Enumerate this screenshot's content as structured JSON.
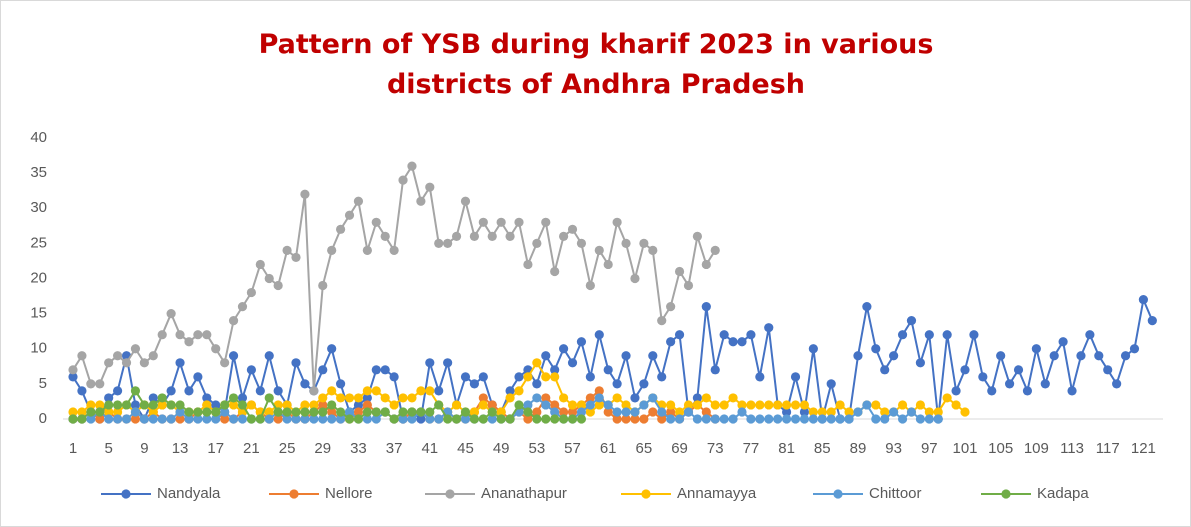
{
  "chart_data": {
    "type": "line",
    "title": "Pattern of YSB during kharif 2023 in various districts of Andhra Pradesh",
    "categories": [
      1,
      null,
      null,
      null,
      5,
      null,
      null,
      null,
      9,
      null,
      null,
      null,
      13,
      null,
      null,
      null,
      17,
      null,
      null,
      null,
      21,
      null,
      null,
      null,
      25,
      null,
      null,
      null,
      29,
      null,
      null,
      null,
      33,
      null,
      null,
      null,
      37,
      null,
      null,
      null,
      41,
      null,
      null,
      null,
      45,
      null,
      null,
      null,
      49,
      null,
      null,
      null,
      53,
      null,
      null,
      null,
      57,
      null,
      null,
      null,
      61,
      null,
      null,
      null,
      65,
      null,
      null,
      null,
      69,
      null,
      null,
      null,
      73,
      null,
      null,
      null,
      77,
      null,
      null,
      null,
      81,
      null,
      null,
      null,
      85,
      null,
      null,
      null,
      89,
      null,
      null,
      null,
      93,
      null,
      null,
      null,
      97,
      null,
      null,
      null,
      101,
      null,
      null,
      null,
      105,
      null,
      null,
      null,
      109,
      null,
      null,
      null,
      113,
      null,
      null,
      null,
      117,
      null,
      null,
      null,
      121,
      null
    ],
    "ylim": [
      0,
      40
    ],
    "yticks": [
      0,
      5,
      10,
      15,
      20,
      25,
      30,
      35,
      40
    ],
    "grid": false,
    "legend": "bottom",
    "series": [
      {
        "name": "Nandyala",
        "color": "#4472c4",
        "values": [
          6,
          4,
          1,
          0,
          3,
          4,
          9,
          2,
          0,
          3,
          2,
          4,
          8,
          4,
          6,
          3,
          2,
          1,
          9,
          3,
          7,
          4,
          9,
          4,
          2,
          8,
          5,
          4,
          7,
          10,
          5,
          1,
          2,
          3,
          7,
          7,
          6,
          0,
          1,
          0,
          8,
          4,
          8,
          2,
          6,
          5,
          6,
          2,
          1,
          4,
          6,
          7,
          5,
          9,
          7,
          10,
          8,
          11,
          6,
          12,
          7,
          5,
          9,
          3,
          5,
          9,
          6,
          11,
          12,
          1,
          3,
          16,
          7,
          12,
          11,
          11,
          12,
          6,
          13,
          2,
          1,
          6,
          1,
          10,
          0,
          5,
          0,
          0,
          9,
          16,
          10,
          7,
          9,
          12,
          14,
          8,
          12,
          0,
          12,
          4,
          7,
          12,
          6,
          4,
          9,
          5,
          7,
          4,
          10,
          5,
          9,
          11,
          4,
          9,
          12,
          9,
          7,
          5,
          9,
          10,
          17,
          14
        ]
      },
      {
        "name": "Nellore",
        "color": "#ed7d31",
        "values": [
          0,
          0,
          1,
          0,
          1,
          0,
          0,
          0,
          0,
          1,
          0,
          0,
          0,
          0,
          1,
          2,
          1,
          0,
          0,
          1,
          2,
          1,
          0,
          0,
          1,
          0,
          0,
          1,
          2,
          1,
          0,
          0,
          1,
          2,
          1,
          1,
          0,
          0,
          1,
          1,
          0,
          0,
          1,
          0,
          0,
          1,
          3,
          2,
          1,
          0,
          1,
          0,
          1,
          3,
          2,
          1,
          1,
          2,
          3,
          4,
          1,
          0,
          0,
          0,
          0,
          1,
          0,
          1,
          0,
          1,
          2,
          1,
          0,
          null,
          null,
          null,
          null,
          null,
          null,
          null,
          null,
          null,
          null,
          null,
          null,
          null,
          null,
          null,
          null,
          null,
          null,
          null,
          null,
          null,
          null,
          null,
          null,
          null,
          null,
          null,
          null,
          null,
          null,
          null,
          null,
          null,
          null,
          null,
          null,
          null,
          null,
          null,
          null,
          null,
          null,
          null,
          null,
          null,
          null,
          null,
          null,
          null
        ]
      },
      {
        "name": "Ananathapur",
        "color": "#a5a5a5",
        "values": [
          7,
          9,
          5,
          5,
          8,
          9,
          8,
          10,
          8,
          9,
          12,
          15,
          12,
          11,
          12,
          12,
          10,
          8,
          14,
          16,
          18,
          22,
          20,
          19,
          24,
          23,
          32,
          4,
          19,
          24,
          27,
          29,
          31,
          24,
          28,
          26,
          24,
          34,
          36,
          31,
          33,
          25,
          25,
          26,
          31,
          26,
          28,
          26,
          28,
          26,
          28,
          22,
          25,
          28,
          21,
          26,
          27,
          25,
          19,
          24,
          22,
          28,
          25,
          20,
          25,
          24,
          14,
          16,
          21,
          19,
          26,
          22,
          24,
          null,
          null,
          null,
          null,
          null,
          null,
          null,
          null,
          null,
          null,
          null,
          null,
          null,
          null,
          null,
          null,
          null,
          null,
          null,
          null,
          null,
          null,
          null,
          null,
          null,
          null,
          null,
          null,
          null,
          null,
          null,
          null,
          null,
          null,
          null,
          null,
          null,
          null,
          null,
          null,
          null,
          null,
          null,
          null,
          null,
          null,
          null,
          null,
          null
        ]
      },
      {
        "name": "Annamayya",
        "color": "#ffc000",
        "values": [
          1,
          1,
          2,
          2,
          1,
          1,
          2,
          1,
          2,
          1,
          2,
          2,
          1,
          1,
          1,
          2,
          1,
          2,
          2,
          1,
          2,
          1,
          1,
          2,
          2,
          1,
          2,
          2,
          3,
          4,
          3,
          3,
          3,
          4,
          4,
          3,
          2,
          3,
          3,
          4,
          4,
          2,
          1,
          2,
          1,
          1,
          2,
          1,
          1,
          3,
          4,
          6,
          8,
          6,
          6,
          3,
          2,
          2,
          1,
          2,
          2,
          3,
          2,
          1,
          2,
          3,
          2,
          2,
          1,
          2,
          2,
          3,
          2,
          2,
          3,
          2,
          2,
          2,
          2,
          2,
          2,
          2,
          2,
          1,
          1,
          1,
          2,
          1,
          1,
          2,
          2,
          1,
          1,
          2,
          1,
          2,
          1,
          1,
          3,
          2,
          1,
          null,
          null,
          null,
          null,
          null,
          null,
          null,
          null,
          null,
          null,
          null,
          null,
          null,
          null,
          null,
          null,
          null,
          null,
          null,
          null,
          null
        ]
      },
      {
        "name": "Chittoor",
        "color": "#5b9bd5",
        "values": [
          0,
          0,
          0,
          1,
          0,
          0,
          0,
          1,
          0,
          0,
          0,
          0,
          1,
          0,
          0,
          0,
          0,
          1,
          0,
          0,
          0,
          0,
          0,
          1,
          0,
          0,
          0,
          0,
          0,
          0,
          0,
          1,
          0,
          0,
          0,
          1,
          0,
          0,
          0,
          1,
          0,
          0,
          1,
          0,
          0,
          0,
          0,
          0,
          0,
          0,
          1,
          2,
          3,
          2,
          1,
          0,
          0,
          1,
          2,
          3,
          2,
          1,
          1,
          1,
          2,
          3,
          1,
          0,
          0,
          1,
          0,
          0,
          0,
          0,
          0,
          1,
          0,
          0,
          0,
          0,
          0,
          0,
          0,
          0,
          0,
          0,
          0,
          0,
          1,
          2,
          0,
          0,
          1,
          0,
          1,
          0,
          0,
          0,
          null,
          null,
          null,
          null,
          null,
          null,
          null,
          null,
          null,
          null,
          null,
          null,
          null,
          null,
          null,
          null,
          null,
          null,
          null,
          null,
          null,
          null,
          null,
          null
        ]
      },
      {
        "name": "Kadapa",
        "color": "#70ad47",
        "values": [
          0,
          0,
          1,
          1,
          2,
          2,
          2,
          4,
          2,
          2,
          3,
          2,
          2,
          1,
          1,
          1,
          1,
          2,
          3,
          2,
          0,
          0,
          3,
          1,
          1,
          1,
          1,
          1,
          1,
          2,
          1,
          0,
          0,
          1,
          1,
          1,
          0,
          1,
          1,
          1,
          1,
          2,
          0,
          0,
          1,
          0,
          0,
          1,
          0,
          0,
          2,
          1,
          0,
          0,
          0,
          0,
          0,
          0,
          null,
          null,
          null,
          null,
          null,
          null,
          null,
          null,
          null,
          null,
          null,
          null,
          null,
          null,
          null,
          null,
          null,
          null,
          null,
          null,
          null,
          null,
          null,
          null,
          null,
          null,
          null,
          null,
          null,
          null,
          null,
          null,
          null,
          null,
          null,
          null,
          null,
          null,
          null,
          null,
          null,
          null,
          null,
          null,
          null,
          null,
          null,
          null,
          null,
          null,
          null,
          null,
          null,
          null,
          null,
          null,
          null,
          null,
          null,
          null,
          null,
          null,
          null,
          null
        ]
      }
    ]
  }
}
